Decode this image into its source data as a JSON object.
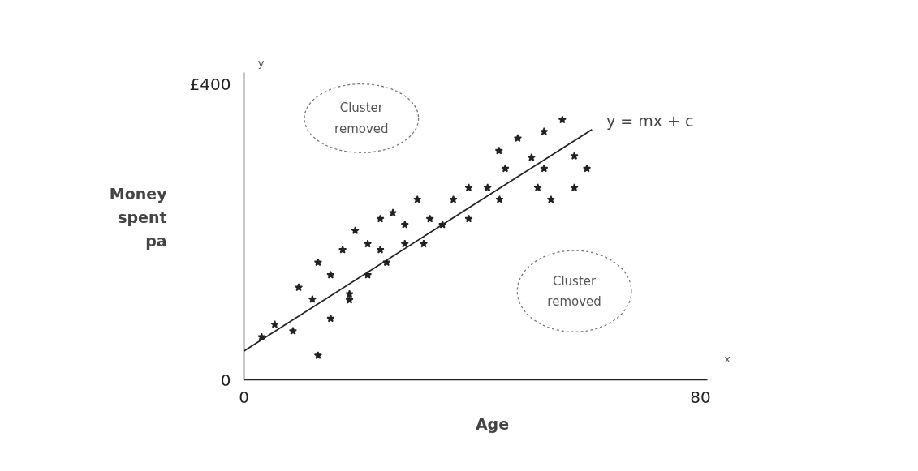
{
  "chart_data": {
    "type": "scatter",
    "xlabel": "Age",
    "ylabel": "Money spent pa",
    "xlim": [
      0,
      81.2
    ],
    "ylim": [
      0,
      416
    ],
    "xticks": [
      0,
      80
    ],
    "yticks": [
      0,
      {
        "value": 400,
        "label": "£400"
      }
    ],
    "grid": false,
    "annotations": [
      "Cluster removed",
      "Cluster removed",
      "y",
      "x"
    ],
    "series": [
      {
        "marker": "star",
        "color": "#222222",
        "x": [
          3.1,
          5.4,
          8.6,
          13.0,
          15.2,
          12.0,
          9.6,
          13.0,
          15.2,
          18.5,
          18.5,
          17.3,
          19.5,
          21.7,
          23.9,
          23.9,
          26.1,
          21.7,
          25.0,
          28.2,
          28.2,
          31.5,
          30.4,
          32.6,
          34.8,
          36.7,
          39.4,
          39.4,
          42.7,
          44.8,
          45.8,
          44.7,
          48.0,
          50.4,
          51.5,
          52.6,
          52.6,
          53.8,
          55.8,
          57.9,
          57.9,
          60.1
        ],
        "values": [
          58,
          75,
          66,
          33,
          83,
          109,
          125,
          159,
          142,
          116,
          108,
          176,
          202,
          184,
          176,
          218,
          226,
          142,
          159,
          210,
          184,
          184,
          244,
          218,
          210,
          244,
          218,
          260,
          260,
          244,
          286,
          310,
          327,
          301,
          260,
          286,
          336,
          244,
          352,
          303,
          260,
          286
        ]
      },
      {
        "type": "line",
        "name": "y = mx + c",
        "color": "#222222",
        "line_style": "solid",
        "x": [
          0,
          61
        ],
        "values": [
          39,
          339
        ]
      }
    ]
  }
}
